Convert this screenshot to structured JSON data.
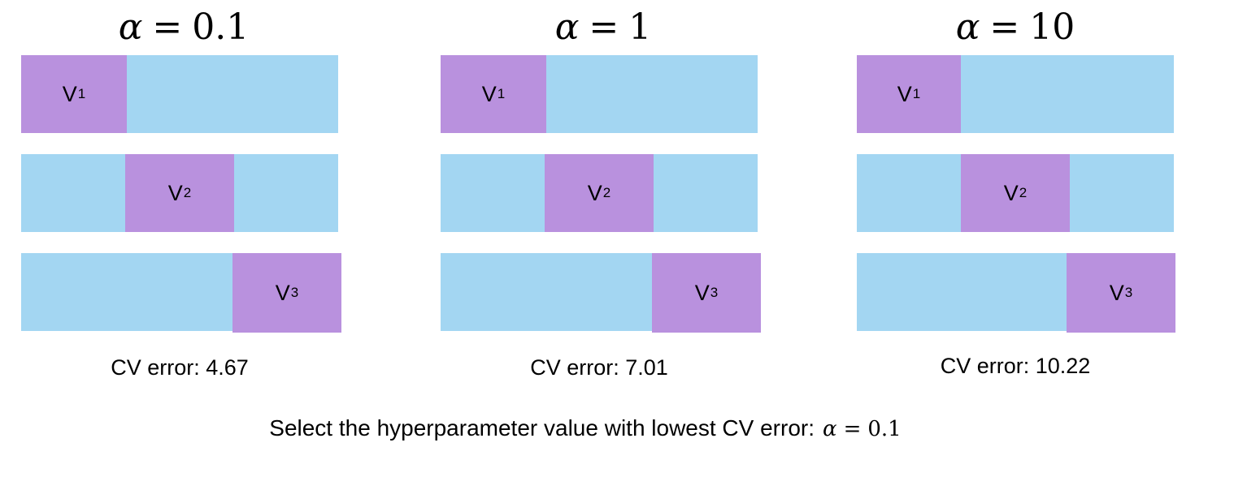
{
  "panels": [
    {
      "alpha_symbol": "α",
      "equals": "=",
      "alpha_value": "0.1",
      "folds": [
        {
          "label": "V",
          "subscript": "1"
        },
        {
          "label": "V",
          "subscript": "2"
        },
        {
          "label": "V",
          "subscript": "3"
        }
      ],
      "cv_text": "CV error: 4.67"
    },
    {
      "alpha_symbol": "α",
      "equals": "=",
      "alpha_value": "1",
      "folds": [
        {
          "label": "V",
          "subscript": "1"
        },
        {
          "label": "V",
          "subscript": "2"
        },
        {
          "label": "V",
          "subscript": "3"
        }
      ],
      "cv_text": "CV error: 7.01"
    },
    {
      "alpha_symbol": "α",
      "equals": "=",
      "alpha_value": "10",
      "folds": [
        {
          "label": "V",
          "subscript": "1"
        },
        {
          "label": "V",
          "subscript": "2"
        },
        {
          "label": "V",
          "subscript": "3"
        }
      ],
      "cv_text": "CV error: 10.22"
    }
  ],
  "footer": {
    "text": "Select the hyperparameter value with lowest CV error:",
    "alpha_symbol": "α",
    "equals": "=",
    "alpha_value": "0.1"
  },
  "colors": {
    "train_fold": "#a3d6f2",
    "validation_fold": "#b991de"
  }
}
